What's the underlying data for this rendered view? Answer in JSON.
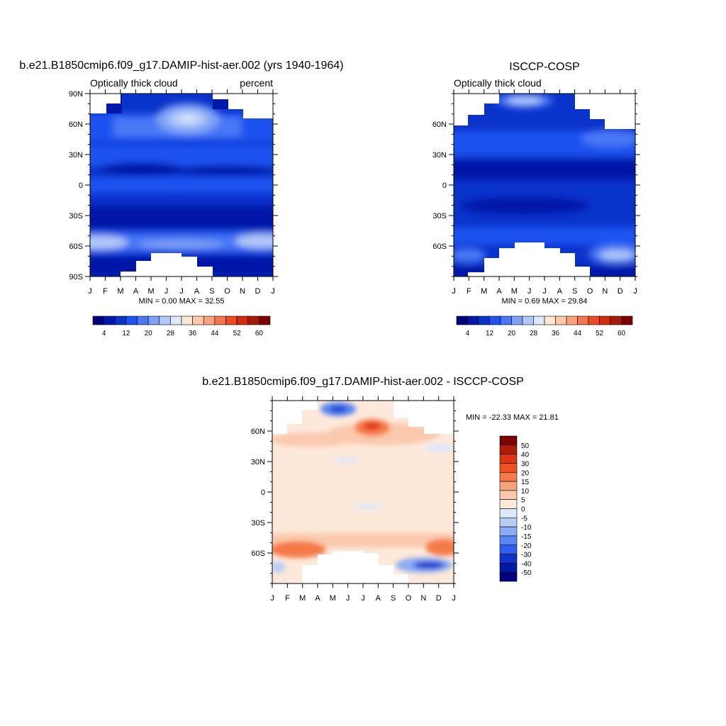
{
  "chart_data": [
    {
      "type": "heatmap",
      "title": "b.e21.B1850cmip6.f09_g17.DAMIP-hist-aer.002 (yrs 1940-1964)",
      "left_label": "Optically thick cloud",
      "right_label": "percent",
      "x_ticks": [
        "J",
        "F",
        "M",
        "A",
        "M",
        "J",
        "J",
        "A",
        "S",
        "O",
        "N",
        "D",
        "J"
      ],
      "y_ticks": [
        "90N",
        "60N",
        "30N",
        "0",
        "30S",
        "60S",
        "90S"
      ],
      "ylim": [
        -90,
        90
      ],
      "stats": "MIN =   0.00 MAX =  32.55",
      "colorbar": {
        "orientation": "horizontal",
        "labels": [
          "4",
          "12",
          "20",
          "28",
          "36",
          "44",
          "52",
          "60"
        ],
        "colors": [
          "#00007f",
          "#0019a8",
          "#0a33cc",
          "#1f52f0",
          "#4a78f5",
          "#7ea1f5",
          "#b0c8f7",
          "#dde8fb",
          "#fde7d4",
          "#fbc8a8",
          "#f8a27b",
          "#f47650",
          "#ec4a22",
          "#d22b0c",
          "#a81a08",
          "#7f0000"
        ]
      },
      "data_summary": "Zonal-mean monthly optically thick cloud fraction; lowest values in subtropics, maxima (~30%) near 60N in Jul-Aug and near 60S in Jan and Dec; missing polar data in winter months."
    },
    {
      "type": "heatmap",
      "title": "ISCCP-COSP",
      "left_label": "Optically thick cloud",
      "x_ticks": [
        "J",
        "F",
        "M",
        "A",
        "M",
        "J",
        "J",
        "A",
        "S",
        "O",
        "N",
        "D",
        "J"
      ],
      "y_ticks": [
        "60N",
        "30N",
        "0",
        "30S",
        "60S"
      ],
      "ylim": [
        -90,
        90
      ],
      "stats": "MIN =   0.69 MAX =  29.84",
      "colorbar": {
        "orientation": "horizontal",
        "labels": [
          "4",
          "12",
          "20",
          "28",
          "36",
          "44",
          "52",
          "60"
        ],
        "colors": [
          "#00007f",
          "#0019a8",
          "#0a33cc",
          "#1f52f0",
          "#4a78f5",
          "#7ea1f5",
          "#b0c8f7",
          "#dde8fb",
          "#fde7d4",
          "#fbc8a8",
          "#f8a27b",
          "#f47650",
          "#ec4a22",
          "#d22b0c",
          "#a81a08",
          "#7f0000"
        ]
      },
      "data_summary": "Observed optically thick cloud; maxima (~28%) near 80N in May-Jun and near 70S in Nov-Dec; large polar gaps."
    },
    {
      "type": "heatmap",
      "title": "b.e21.B1850cmip6.f09_g17.DAMIP-hist-aer.002 - ISCCP-COSP",
      "x_ticks": [
        "J",
        "F",
        "M",
        "A",
        "M",
        "J",
        "J",
        "A",
        "S",
        "O",
        "N",
        "D",
        "J"
      ],
      "y_ticks": [
        "60N",
        "30N",
        "0",
        "30S",
        "60S"
      ],
      "ylim": [
        -90,
        90
      ],
      "stats": "MIN = -22.33 MAX =  21.81",
      "colorbar": {
        "orientation": "vertical",
        "labels": [
          "50",
          "40",
          "30",
          "20",
          "15",
          "10",
          "5",
          "0",
          "-5",
          "-10",
          "-15",
          "-20",
          "-30",
          "-40",
          "-50"
        ],
        "colors": [
          "#7f0000",
          "#b01c06",
          "#dd3510",
          "#f0521e",
          "#f57a48",
          "#f8a27b",
          "#fac9ad",
          "#fde9da",
          "#dde8fb",
          "#b6cdf6",
          "#8aabf5",
          "#5a86f3",
          "#2e5ef0",
          "#0f35c8",
          "#001aa5",
          "#00007f"
        ]
      },
      "data_summary": "Model minus observations; small positive biases (0-5%) over most latitudes, positive maxima near 65N Jul-Aug and near 55S Jan/Dec, negative minima near 80N Apr-May and 70S Nov-Dec."
    }
  ]
}
